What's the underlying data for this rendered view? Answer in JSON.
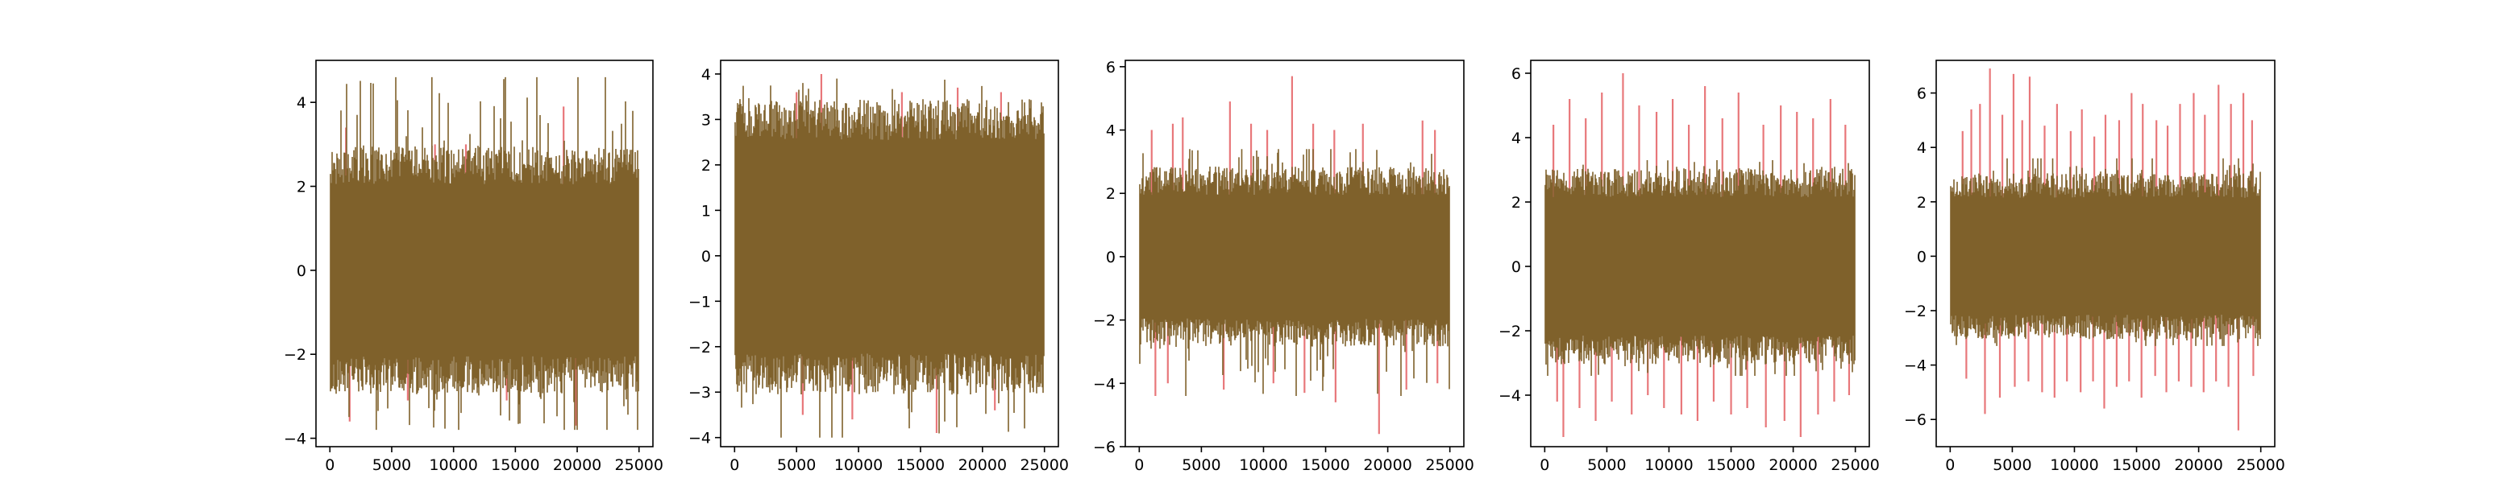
{
  "figure": {
    "background": "#ffffff",
    "colors": {
      "anomaly": "#e8777a",
      "signal": "#7f612b",
      "axes": "#000000"
    }
  },
  "chart_data": [
    {
      "type": "line",
      "x_range": [
        0,
        25000
      ],
      "ylim": [
        -4.2,
        5.0
      ],
      "xticks": [
        0,
        5000,
        10000,
        15000,
        20000,
        25000
      ],
      "xtick_labels": [
        "0",
        "5000",
        "10000",
        "15000",
        "20000",
        "25000"
      ],
      "yticks": [
        -4,
        -2,
        0,
        2,
        4
      ],
      "ytick_labels": [
        "−4",
        "−2",
        "0",
        "2",
        "4"
      ],
      "band": {
        "base_low": -2.5,
        "base_high": 2.5,
        "max": 4.6,
        "min": -3.8
      },
      "spikes_up": [
        [
          1300,
          3.4
        ],
        [
          8500,
          3.0
        ],
        [
          11000,
          3.0
        ],
        [
          18900,
          3.9
        ]
      ],
      "spikes_down": [
        [
          1600,
          -3.6
        ],
        [
          6300,
          -3.1
        ],
        [
          14300,
          -3.1
        ],
        [
          19900,
          -3.7
        ]
      ],
      "grid": false
    },
    {
      "type": "line",
      "x_range": [
        0,
        25000
      ],
      "ylim": [
        -4.2,
        4.3
      ],
      "xticks": [
        0,
        5000,
        10000,
        15000,
        20000,
        25000
      ],
      "xtick_labels": [
        "0",
        "5000",
        "10000",
        "15000",
        "20000",
        "25000"
      ],
      "yticks": [
        -4,
        -3,
        -2,
        -1,
        0,
        1,
        2,
        3,
        4
      ],
      "ytick_labels": [
        "−4",
        "−3",
        "−2",
        "−1",
        "0",
        "1",
        "2",
        "3",
        "4"
      ],
      "band": {
        "base_low": -2.6,
        "base_high": 3.0,
        "max": 3.9,
        "min": -4.0
      },
      "spikes_up": [
        [
          5000,
          3.6
        ],
        [
          7000,
          4.0
        ],
        [
          13500,
          3.6
        ],
        [
          18000,
          3.7
        ],
        [
          21500,
          3.6
        ]
      ],
      "spikes_down": [
        [
          5500,
          -3.5
        ],
        [
          9500,
          -3.6
        ],
        [
          16300,
          -3.9
        ],
        [
          21000,
          -3.4
        ]
      ],
      "grid": false
    },
    {
      "type": "line",
      "x_range": [
        0,
        25000
      ],
      "ylim": [
        -6.0,
        6.2
      ],
      "xticks": [
        0,
        5000,
        10000,
        15000,
        20000,
        25000
      ],
      "xtick_labels": [
        "0",
        "5000",
        "10000",
        "15000",
        "20000",
        "25000"
      ],
      "yticks": [
        -6,
        -4,
        -2,
        0,
        2,
        4,
        6
      ],
      "ytick_labels": [
        "−6",
        "−4",
        "−2",
        "0",
        "2",
        "4",
        "6"
      ],
      "band": {
        "base_low": -2.4,
        "base_high": 2.4,
        "max": 3.4,
        "min": -4.4
      },
      "spikes_up": [
        [
          1000,
          4.0
        ],
        [
          2700,
          4.2
        ],
        [
          3500,
          4.4
        ],
        [
          7300,
          4.9
        ],
        [
          9000,
          4.2
        ],
        [
          10300,
          4.0
        ],
        [
          12300,
          5.7
        ],
        [
          14000,
          4.2
        ],
        [
          15700,
          4.0
        ],
        [
          18000,
          4.2
        ],
        [
          22800,
          4.3
        ],
        [
          23800,
          4.0
        ]
      ],
      "spikes_down": [
        [
          1300,
          -4.4
        ],
        [
          2300,
          -4.0
        ],
        [
          6800,
          -4.2
        ],
        [
          10800,
          -4.0
        ],
        [
          13300,
          -4.3
        ],
        [
          15800,
          -4.6
        ],
        [
          19300,
          -5.6
        ],
        [
          21500,
          -4.2
        ],
        [
          24000,
          -4.0
        ]
      ],
      "grid": false
    },
    {
      "type": "line",
      "x_range": [
        0,
        25000
      ],
      "ylim": [
        -5.6,
        6.4
      ],
      "xticks": [
        0,
        5000,
        10000,
        15000,
        20000,
        25000
      ],
      "xtick_labels": [
        "0",
        "5000",
        "10000",
        "15000",
        "20000",
        "25000"
      ],
      "yticks": [
        -4,
        -2,
        0,
        2,
        4,
        6
      ],
      "ytick_labels": [
        "−4",
        "−2",
        "0",
        "2",
        "4",
        "6"
      ],
      "band": {
        "base_low": -2.6,
        "base_high": 2.6,
        "max": 3.3,
        "min": -3.4
      },
      "spikes_up": [
        [
          700,
          4.4
        ],
        [
          2000,
          5.2
        ],
        [
          3300,
          4.6
        ],
        [
          4600,
          5.4
        ],
        [
          6300,
          6.0
        ],
        [
          7600,
          5.0
        ],
        [
          9000,
          4.8
        ],
        [
          10300,
          5.2
        ],
        [
          11600,
          4.4
        ],
        [
          12900,
          5.6
        ],
        [
          14300,
          4.6
        ],
        [
          15600,
          5.4
        ],
        [
          17600,
          4.4
        ],
        [
          19000,
          5.0
        ],
        [
          20300,
          4.8
        ],
        [
          21600,
          4.6
        ],
        [
          23000,
          5.2
        ],
        [
          24200,
          4.4
        ]
      ],
      "spikes_down": [
        [
          1000,
          -4.2
        ],
        [
          1500,
          -5.3
        ],
        [
          2800,
          -4.4
        ],
        [
          4100,
          -4.8
        ],
        [
          5400,
          -4.2
        ],
        [
          7000,
          -4.6
        ],
        [
          8300,
          -4.0
        ],
        [
          9600,
          -4.4
        ],
        [
          11000,
          -4.6
        ],
        [
          12300,
          -4.8
        ],
        [
          13600,
          -4.2
        ],
        [
          15000,
          -4.6
        ],
        [
          16300,
          -4.4
        ],
        [
          17800,
          -5.0
        ],
        [
          19300,
          -4.8
        ],
        [
          20600,
          -5.3
        ],
        [
          22000,
          -4.6
        ],
        [
          23300,
          -4.2
        ],
        [
          24500,
          -4.0
        ]
      ],
      "grid": false
    },
    {
      "type": "line",
      "x_range": [
        0,
        25000
      ],
      "ylim": [
        -7.0,
        7.2
      ],
      "xticks": [
        0,
        5000,
        10000,
        15000,
        20000,
        25000
      ],
      "xtick_labels": [
        "0",
        "5000",
        "10000",
        "15000",
        "20000",
        "25000"
      ],
      "yticks": [
        -6,
        -4,
        -2,
        0,
        2,
        4,
        6
      ],
      "ytick_labels": [
        "−6",
        "−4",
        "−2",
        "0",
        "2",
        "4",
        "6"
      ],
      "band": {
        "base_low": -2.6,
        "base_high": 2.6,
        "max": 3.6,
        "min": -3.3
      },
      "spikes_up": [
        [
          1000,
          4.6
        ],
        [
          1700,
          5.4
        ],
        [
          2400,
          5.6
        ],
        [
          3200,
          6.9
        ],
        [
          4200,
          5.2
        ],
        [
          5100,
          6.7
        ],
        [
          5800,
          5.0
        ],
        [
          6400,
          6.6
        ],
        [
          7600,
          4.8
        ],
        [
          8600,
          5.6
        ],
        [
          9700,
          4.6
        ],
        [
          10600,
          5.4
        ],
        [
          11600,
          4.4
        ],
        [
          12500,
          5.2
        ],
        [
          13600,
          5.0
        ],
        [
          14600,
          6.0
        ],
        [
          15500,
          5.6
        ],
        [
          16600,
          5.0
        ],
        [
          17500,
          4.8
        ],
        [
          18500,
          5.6
        ],
        [
          19600,
          6.0
        ],
        [
          20500,
          5.2
        ],
        [
          21600,
          6.3
        ],
        [
          22600,
          5.6
        ],
        [
          23600,
          6.0
        ],
        [
          24300,
          5.0
        ]
      ],
      "spikes_down": [
        [
          1300,
          -4.5
        ],
        [
          2800,
          -5.8
        ],
        [
          4000,
          -5.2
        ],
        [
          5200,
          -4.8
        ],
        [
          6300,
          -4.6
        ],
        [
          7400,
          -5.0
        ],
        [
          8400,
          -5.2
        ],
        [
          9400,
          -4.6
        ],
        [
          10500,
          -5.0
        ],
        [
          11500,
          -4.6
        ],
        [
          12400,
          -5.6
        ],
        [
          13400,
          -4.8
        ],
        [
          14400,
          -4.6
        ],
        [
          15400,
          -5.2
        ],
        [
          16500,
          -4.4
        ],
        [
          17400,
          -5.0
        ],
        [
          18400,
          -4.6
        ],
        [
          19400,
          -4.8
        ],
        [
          20400,
          -5.0
        ],
        [
          21400,
          -4.6
        ],
        [
          22400,
          -4.8
        ],
        [
          23200,
          -6.4
        ],
        [
          24400,
          -4.4
        ]
      ],
      "grid": false
    }
  ]
}
